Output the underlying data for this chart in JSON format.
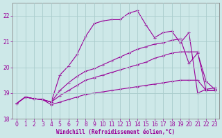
{
  "xlabel": "Windchill (Refroidissement éolien,°C)",
  "bg_color": "#cde8e8",
  "line_color": "#990099",
  "grid_color": "#aacccc",
  "xlim": [
    -0.5,
    23.5
  ],
  "ylim": [
    18.0,
    22.5
  ],
  "yticks": [
    18,
    19,
    20,
    21,
    22
  ],
  "xticks": [
    0,
    1,
    2,
    3,
    4,
    5,
    6,
    7,
    8,
    9,
    10,
    11,
    12,
    13,
    14,
    15,
    16,
    17,
    18,
    19,
    20,
    21,
    22,
    23
  ],
  "lines": [
    {
      "x": [
        0,
        1,
        2,
        3,
        4,
        5,
        6,
        7,
        8,
        9,
        10,
        11,
        12,
        13,
        14,
        15,
        16,
        17,
        18,
        19,
        20,
        21,
        22,
        23
      ],
      "y": [
        18.6,
        18.85,
        18.78,
        18.75,
        18.65,
        19.7,
        20.05,
        20.5,
        21.2,
        21.7,
        21.8,
        21.85,
        21.85,
        22.1,
        22.2,
        21.65,
        21.15,
        21.35,
        21.4,
        20.95,
        21.35,
        19.0,
        19.15,
        19.2
      ]
    },
    {
      "x": [
        0,
        1,
        2,
        3,
        4,
        5,
        6,
        7,
        8,
        9,
        10,
        11,
        12,
        13,
        14,
        15,
        16,
        17,
        18,
        19,
        20,
        21,
        22,
        23
      ],
      "y": [
        18.6,
        18.85,
        18.78,
        18.75,
        18.65,
        19.1,
        19.4,
        19.65,
        19.85,
        19.95,
        20.1,
        20.25,
        20.4,
        20.55,
        20.7,
        20.8,
        20.9,
        20.95,
        21.05,
        21.1,
        20.15,
        20.55,
        19.45,
        19.15
      ]
    },
    {
      "x": [
        0,
        1,
        2,
        3,
        4,
        5,
        6,
        7,
        8,
        9,
        10,
        11,
        12,
        13,
        14,
        15,
        16,
        17,
        18,
        19,
        20,
        21,
        22,
        23
      ],
      "y": [
        18.6,
        18.85,
        18.78,
        18.75,
        18.65,
        18.9,
        19.1,
        19.3,
        19.5,
        19.6,
        19.7,
        19.8,
        19.9,
        20.0,
        20.1,
        20.2,
        20.35,
        20.45,
        20.55,
        20.6,
        20.6,
        20.6,
        19.1,
        19.1
      ]
    },
    {
      "x": [
        0,
        1,
        2,
        3,
        4,
        5,
        6,
        7,
        8,
        9,
        10,
        11,
        12,
        13,
        14,
        15,
        16,
        17,
        18,
        19,
        20,
        21,
        22,
        23
      ],
      "y": [
        18.6,
        18.85,
        18.78,
        18.75,
        18.55,
        18.65,
        18.75,
        18.85,
        18.95,
        19.0,
        19.05,
        19.1,
        19.15,
        19.2,
        19.25,
        19.3,
        19.35,
        19.4,
        19.45,
        19.5,
        19.5,
        19.5,
        19.1,
        19.1
      ]
    }
  ],
  "figsize": [
    3.2,
    2.0
  ],
  "dpi": 100,
  "xlabel_fontsize": 5.5,
  "tick_fontsize": 5.5
}
